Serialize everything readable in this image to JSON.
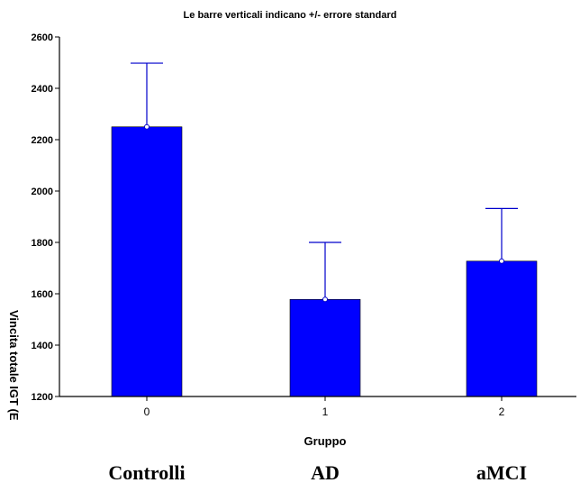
{
  "chart_data": {
    "type": "bar",
    "title": "Le barre verticali indicano +/- errore standard",
    "xlabel": "Gruppo",
    "ylabel": "Vincita totale IGT (E",
    "categories": [
      "0",
      "1",
      "2"
    ],
    "group_labels": [
      "Controlli",
      "AD",
      "aMCI"
    ],
    "values": [
      2250,
      1578,
      1727
    ],
    "error_upper": [
      2498,
      1800,
      1932
    ],
    "ylim": [
      1200,
      2600
    ],
    "yticks": [
      1200,
      1400,
      1600,
      1800,
      2000,
      2200,
      2400,
      2600
    ],
    "grid": false,
    "colors": {
      "bar": "#0000ff",
      "error_bar": "#0000cc",
      "axis": "#000000"
    }
  }
}
